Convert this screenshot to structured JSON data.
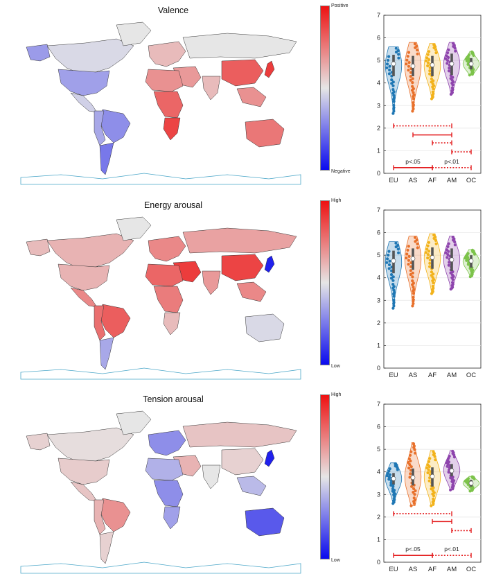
{
  "chart_data": [
    {
      "type": "map",
      "title": "Valence",
      "colorbar": {
        "high_label": "Positive",
        "low_label": "Negative",
        "high_color": "#ee1111",
        "mid_color": "#e6e6e6",
        "low_color": "#0a0aee"
      },
      "regions": [
        {
          "name": "north-america",
          "level": 0.47
        },
        {
          "name": "alaska",
          "level": 0.33
        },
        {
          "name": "greenland",
          "level": 0.5
        },
        {
          "name": "usa",
          "level": 0.34
        },
        {
          "name": "mexico",
          "level": 0.45
        },
        {
          "name": "brazil",
          "level": 0.3
        },
        {
          "name": "south-america-west",
          "level": 0.36
        },
        {
          "name": "argentina",
          "level": 0.25
        },
        {
          "name": "europe",
          "level": 0.6
        },
        {
          "name": "russia",
          "level": 0.5
        },
        {
          "name": "middle-east",
          "level": 0.68
        },
        {
          "name": "india",
          "level": 0.6
        },
        {
          "name": "china",
          "level": 0.82
        },
        {
          "name": "japan",
          "level": 0.9
        },
        {
          "name": "southeast-asia",
          "level": 0.7
        },
        {
          "name": "north-africa",
          "level": 0.7
        },
        {
          "name": "central-africa",
          "level": 0.8
        },
        {
          "name": "southern-africa",
          "level": 0.88
        },
        {
          "name": "australia",
          "level": 0.76
        }
      ]
    },
    {
      "type": "map",
      "title": "Energy arousal",
      "colorbar": {
        "high_label": "High",
        "low_label": "Low",
        "high_color": "#ee1111",
        "mid_color": "#e6e6e6",
        "low_color": "#0a0aee"
      },
      "regions": [
        {
          "name": "north-america",
          "level": 0.62
        },
        {
          "name": "alaska",
          "level": 0.6
        },
        {
          "name": "greenland",
          "level": 0.5
        },
        {
          "name": "usa",
          "level": 0.62
        },
        {
          "name": "mexico",
          "level": 0.72
        },
        {
          "name": "brazil",
          "level": 0.82
        },
        {
          "name": "south-america-west",
          "level": 0.78
        },
        {
          "name": "argentina",
          "level": 0.36
        },
        {
          "name": "europe",
          "level": 0.72
        },
        {
          "name": "russia",
          "level": 0.66
        },
        {
          "name": "middle-east",
          "level": 0.9
        },
        {
          "name": "india",
          "level": 0.68
        },
        {
          "name": "china",
          "level": 0.88
        },
        {
          "name": "japan",
          "level": 0.05
        },
        {
          "name": "southeast-asia",
          "level": 0.72
        },
        {
          "name": "north-africa",
          "level": 0.8
        },
        {
          "name": "central-africa",
          "level": 0.75
        },
        {
          "name": "southern-africa",
          "level": 0.6
        },
        {
          "name": "australia",
          "level": 0.47
        }
      ]
    },
    {
      "type": "map",
      "title": "Tension arousal",
      "colorbar": {
        "high_label": "High",
        "low_label": "Low",
        "high_color": "#ee1111",
        "mid_color": "#e6e6e6",
        "low_color": "#0a0aee"
      },
      "regions": [
        {
          "name": "north-america",
          "level": 0.52
        },
        {
          "name": "alaska",
          "level": 0.55
        },
        {
          "name": "greenland",
          "level": 0.5
        },
        {
          "name": "usa",
          "level": 0.56
        },
        {
          "name": "mexico",
          "level": 0.58
        },
        {
          "name": "brazil",
          "level": 0.7
        },
        {
          "name": "south-america-west",
          "level": 0.62
        },
        {
          "name": "argentina",
          "level": 0.55
        },
        {
          "name": "europe",
          "level": 0.3
        },
        {
          "name": "russia",
          "level": 0.58
        },
        {
          "name": "middle-east",
          "level": 0.62
        },
        {
          "name": "india",
          "level": 0.5
        },
        {
          "name": "china",
          "level": 0.55
        },
        {
          "name": "japan",
          "level": 0.05
        },
        {
          "name": "southeast-asia",
          "level": 0.4
        },
        {
          "name": "north-africa",
          "level": 0.38
        },
        {
          "name": "central-africa",
          "level": 0.3
        },
        {
          "name": "southern-africa",
          "level": 0.34
        },
        {
          "name": "australia",
          "level": 0.18
        }
      ]
    },
    {
      "type": "violin",
      "categories": [
        "EU",
        "AS",
        "AF",
        "AM",
        "OC"
      ],
      "colors": [
        "#1f77b4",
        "#e8702a",
        "#f2b21a",
        "#8e44ad",
        "#7cc34a"
      ],
      "ylim": [
        0,
        7
      ],
      "yticks": [
        0,
        1,
        2,
        3,
        4,
        5,
        6,
        7
      ],
      "grid": true,
      "series": [
        {
          "name": "EU",
          "median": 4.85,
          "min": 2.65,
          "max": 5.6,
          "q1": 4.3,
          "q3": 5.25
        },
        {
          "name": "AS",
          "median": 4.75,
          "min": 2.75,
          "max": 5.8,
          "q1": 4.3,
          "q3": 5.2
        },
        {
          "name": "AF",
          "median": 4.8,
          "min": 3.3,
          "max": 5.75,
          "q1": 4.3,
          "q3": 5.2
        },
        {
          "name": "AM",
          "median": 4.85,
          "min": 3.5,
          "max": 5.8,
          "q1": 4.35,
          "q3": 5.3
        },
        {
          "name": "OC",
          "median": 4.85,
          "min": 4.35,
          "max": 5.4,
          "q1": 4.6,
          "q3": 5.1
        }
      ],
      "comparisons": [
        {
          "from": "EU",
          "to": "AM",
          "y": 2.1,
          "style": "dotted"
        },
        {
          "from": "AS",
          "to": "AM",
          "y": 1.7,
          "style": "solid"
        },
        {
          "from": "AF",
          "to": "AM",
          "y": 1.35,
          "style": "dotted"
        },
        {
          "from": "AM",
          "to": "OC",
          "y": 0.95,
          "style": "dotted"
        },
        {
          "from": "EU",
          "to": "AF",
          "y": 0.25,
          "style": "solid",
          "label": "p<.05"
        },
        {
          "from": "AF",
          "to": "OC",
          "y": 0.25,
          "style": "dotted",
          "label": "p<.01"
        }
      ]
    },
    {
      "type": "violin",
      "categories": [
        "EU",
        "AS",
        "AF",
        "AM",
        "OC"
      ],
      "colors": [
        "#1f77b4",
        "#e8702a",
        "#f2b21a",
        "#8e44ad",
        "#7cc34a"
      ],
      "ylim": [
        0,
        7
      ],
      "yticks": [
        0,
        1,
        2,
        3,
        4,
        5,
        6,
        7
      ],
      "grid": true,
      "series": [
        {
          "name": "EU",
          "median": 4.75,
          "min": 2.65,
          "max": 5.6,
          "q1": 4.2,
          "q3": 5.2
        },
        {
          "name": "AS",
          "median": 4.85,
          "min": 2.75,
          "max": 5.85,
          "q1": 4.35,
          "q3": 5.3
        },
        {
          "name": "AF",
          "median": 4.9,
          "min": 3.3,
          "max": 5.95,
          "q1": 4.4,
          "q3": 5.35
        },
        {
          "name": "AM",
          "median": 4.8,
          "min": 3.5,
          "max": 5.85,
          "q1": 4.3,
          "q3": 5.3
        },
        {
          "name": "OC",
          "median": 4.75,
          "min": 4.05,
          "max": 5.25,
          "q1": 4.45,
          "q3": 5.0
        }
      ],
      "comparisons": []
    },
    {
      "type": "violin",
      "categories": [
        "EU",
        "AS",
        "AF",
        "AM",
        "OC"
      ],
      "colors": [
        "#1f77b4",
        "#e8702a",
        "#f2b21a",
        "#8e44ad",
        "#7cc34a"
      ],
      "ylim": [
        0,
        7
      ],
      "yticks": [
        0,
        1,
        2,
        3,
        4,
        5,
        6,
        7
      ],
      "grid": true,
      "series": [
        {
          "name": "EU",
          "median": 3.7,
          "min": 2.6,
          "max": 4.4,
          "q1": 3.45,
          "q3": 3.95
        },
        {
          "name": "AS",
          "median": 3.75,
          "min": 2.5,
          "max": 5.3,
          "q1": 3.4,
          "q3": 4.15
        },
        {
          "name": "AF",
          "median": 3.8,
          "min": 2.5,
          "max": 4.95,
          "q1": 3.35,
          "q3": 4.2
        },
        {
          "name": "AM",
          "median": 4.05,
          "min": 3.2,
          "max": 4.95,
          "q1": 3.8,
          "q3": 4.35
        },
        {
          "name": "OC",
          "median": 3.5,
          "min": 3.15,
          "max": 3.8,
          "q1": 3.35,
          "q3": 3.65
        }
      ],
      "comparisons": [
        {
          "from": "EU",
          "to": "AM",
          "y": 2.15,
          "style": "dotted"
        },
        {
          "from": "AF",
          "to": "AM",
          "y": 1.8,
          "style": "solid"
        },
        {
          "from": "AM",
          "to": "OC",
          "y": 1.4,
          "style": "dotted"
        },
        {
          "from": "EU",
          "to": "AF",
          "y": 0.3,
          "style": "solid",
          "label": "p<.05"
        },
        {
          "from": "AF",
          "to": "OC",
          "y": 0.3,
          "style": "dotted",
          "label": "p<.01"
        }
      ]
    }
  ]
}
